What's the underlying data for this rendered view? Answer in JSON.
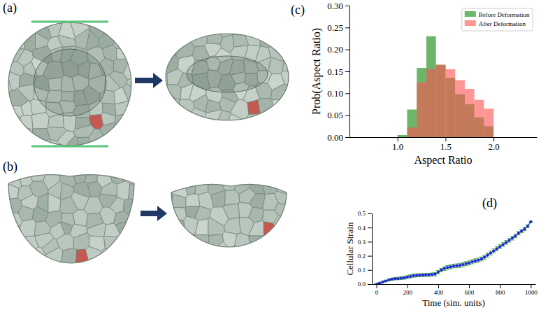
{
  "figure": {
    "panel_labels": [
      "(a)",
      "(b)",
      "(c)",
      "(d)"
    ]
  },
  "chart_data": [
    {
      "type": "histogram",
      "x_label": "Aspect Ratio",
      "y_label": "Prob(Aspect Ratio)",
      "bins": [
        1.0,
        1.1,
        1.2,
        1.3,
        1.4,
        1.5,
        1.6,
        1.7,
        1.8,
        1.9,
        2.0
      ],
      "series": [
        {
          "name": "Before Deformation",
          "color": "#3a9d3a",
          "values": [
            0.005,
            0.063,
            0.158,
            0.23,
            0.165,
            0.135,
            0.098,
            0.075,
            0.045,
            0.025
          ]
        },
        {
          "name": "After Deformation",
          "color": "#ff5050",
          "values": [
            0,
            0.022,
            0.125,
            0.155,
            0.165,
            0.155,
            0.13,
            0.11,
            0.085,
            0.065
          ]
        }
      ],
      "xlim": [
        0.5,
        2.45
      ],
      "xticks": [
        {
          "value": 1,
          "label": "1.0"
        },
        1.5,
        {
          "value": 2,
          "label": "2.0"
        }
      ],
      "ylim": [
        0,
        0.3
      ],
      "yticks": [
        {
          "value": 0,
          "label": "0.00"
        },
        {
          "value": 0.05,
          "label": "0.05"
        },
        {
          "value": 0.1,
          "label": "0.10"
        },
        {
          "value": 0.15,
          "label": "0.15"
        },
        {
          "value": 0.2,
          "label": "0.20"
        },
        {
          "value": 0.25,
          "label": "0.25"
        },
        {
          "value": 0.3,
          "label": "0.30"
        }
      ],
      "legend": "upper right"
    },
    {
      "type": "line",
      "x_label": "Time (sim. units)",
      "y_label": "Cellular Strain",
      "x": [
        0,
        20,
        40,
        60,
        80,
        100,
        120,
        140,
        160,
        180,
        200,
        220,
        240,
        260,
        280,
        300,
        320,
        340,
        360,
        380,
        400,
        420,
        440,
        460,
        480,
        500,
        520,
        540,
        560,
        580,
        600,
        620,
        640,
        660,
        680,
        700,
        720,
        740,
        760,
        780,
        800,
        820,
        840,
        860,
        880,
        900,
        920,
        940,
        960,
        980,
        1000
      ],
      "series": [
        {
          "color": "#1f1fdf",
          "marker": "o",
          "line_style": "solid",
          "values": [
            0,
            0.008,
            0.015,
            0.022,
            0.03,
            0.035,
            0.038,
            0.04,
            0.042,
            0.045,
            0.05,
            0.055,
            0.06,
            0.062,
            0.063,
            0.064,
            0.065,
            0.066,
            0.068,
            0.07,
            0.085,
            0.1,
            0.11,
            0.118,
            0.122,
            0.128,
            0.13,
            0.132,
            0.138,
            0.145,
            0.15,
            0.158,
            0.165,
            0.17,
            0.178,
            0.19,
            0.205,
            0.22,
            0.235,
            0.25,
            0.265,
            0.28,
            0.295,
            0.31,
            0.325,
            0.34,
            0.36,
            0.375,
            0.39,
            0.41,
            0.44
          ],
          "errors": [
            0.002,
            0.004,
            0.005,
            0.006,
            0.007,
            0.008,
            0.008,
            0.009,
            0.009,
            0.01,
            0.01,
            0.011,
            0.011,
            0.011,
            0.011,
            0.011,
            0.011,
            0.011,
            0.011,
            0.012,
            0.012,
            0.012,
            0.013,
            0.013,
            0.013,
            0.013,
            0.013,
            0.013,
            0.014,
            0.014,
            0.014,
            0.014,
            0.014,
            0.014,
            0.014,
            0.014,
            0.014,
            0.014,
            0.014,
            0.014,
            0.013,
            0.013,
            0.013,
            0.013,
            0.013,
            0.012,
            0.012,
            0.012,
            0.012,
            0.01,
            0.005
          ]
        }
      ],
      "xlim": [
        -30,
        1030
      ],
      "xticks": [
        0,
        200,
        400,
        600,
        800,
        1000
      ],
      "ylim": [
        0,
        0.5
      ],
      "yticks": [
        {
          "value": 0,
          "label": "0.0"
        },
        0.1,
        0.2,
        0.3,
        0.4,
        0.5
      ]
    }
  ]
}
